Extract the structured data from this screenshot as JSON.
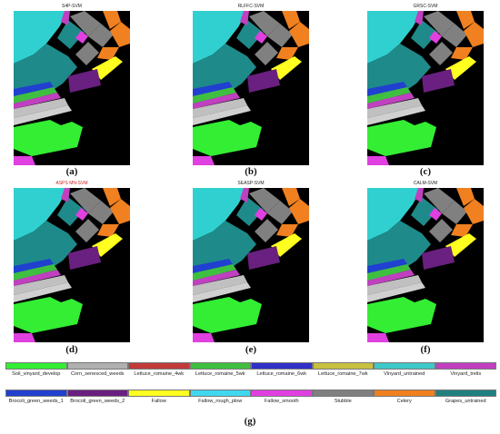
{
  "panels": [
    {
      "title": "S4P-SVM",
      "label": "(a)",
      "title_color": "#222222"
    },
    {
      "title": "RLFFC-SVM",
      "label": "(b)",
      "title_color": "#222222"
    },
    {
      "title": "GRSC-SVM",
      "label": "(c)",
      "title_color": "#222222"
    },
    {
      "title": "ASPS MN-SVM",
      "label": "(d)",
      "title_color": "#cc2222"
    },
    {
      "title": "SEASP-SVM",
      "label": "(e)",
      "title_color": "#222222"
    },
    {
      "title": "CALM-SVM",
      "label": "(f)",
      "title_color": "#222222"
    }
  ],
  "legend": {
    "row1": [
      {
        "name": "Soil_vinyard_develop",
        "color": "#33ee33"
      },
      {
        "name": "Corn_senesced_weeds",
        "color": "#b0b0b0"
      },
      {
        "name": "Lettuce_romaine_4wk",
        "color": "#c03a3a"
      },
      {
        "name": "Lettuce_romaine_5wk",
        "color": "#3fbf3f"
      },
      {
        "name": "Lettuce_romaine_6wk",
        "color": "#3030c8"
      },
      {
        "name": "Lettuce_romaine_7wk",
        "color": "#c8c040"
      },
      {
        "name": "Vinyard_untrained",
        "color": "#3ec8c8"
      },
      {
        "name": "Vinyard_treils",
        "color": "#c040c0"
      }
    ],
    "row2": [
      {
        "name": "Brocoli_green_weeds_1",
        "color": "#2040d0"
      },
      {
        "name": "Brocoli_green_weeds_2",
        "color": "#6a2080"
      },
      {
        "name": "Fallow",
        "color": "#ffff20"
      },
      {
        "name": "Fallow_rough_plow",
        "color": "#40d8f0"
      },
      {
        "name": "Fallow_smooth",
        "color": "#e040e0"
      },
      {
        "name": "Stubble",
        "color": "#808080"
      },
      {
        "name": "Celery",
        "color": "#f08020"
      },
      {
        "name": "Grapes_untrained",
        "color": "#208080"
      }
    ],
    "label": "(g)"
  },
  "colors": {
    "background": "#000000",
    "vinyard_untrained": "#30d0d0",
    "grapes": "#1f8a8a",
    "celery": "#f08020",
    "stubble": "#808080",
    "fallow_smooth": "#e040e0",
    "fallow": "#ffff20",
    "brocoli2": "#6a2080",
    "soil": "#33ee33",
    "lettuce": "#c0c0c0",
    "magenta": "#c040c0"
  }
}
